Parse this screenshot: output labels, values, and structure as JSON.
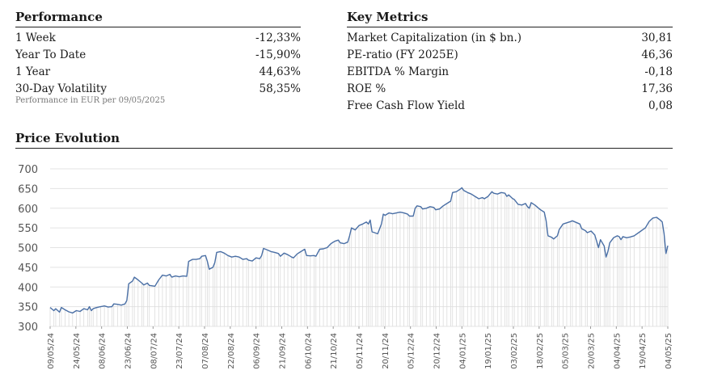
{
  "performance": {
    "title": "Performance",
    "rows": [
      {
        "label": "1 Week",
        "value": "-12,33%"
      },
      {
        "label": "Year To Date",
        "value": "-15,90%"
      },
      {
        "label": "1 Year",
        "value": "44,63%"
      },
      {
        "label": "30-Day Volatility",
        "value": "58,35%"
      }
    ],
    "note": "Performance in EUR per 09/05/2025"
  },
  "key_metrics": {
    "title": "Key Metrics",
    "rows": [
      {
        "label": "Market Capitalization (in $ bn.)",
        "value": "30,81"
      },
      {
        "label": "PE-ratio (FY 2025E)",
        "value": "46,36"
      },
      {
        "label": "EBITDA % Margin",
        "value": "-0,18"
      },
      {
        "label": "ROE %",
        "value": "17,36"
      },
      {
        "label": "Free Cash Flow Yield",
        "value": "0,08"
      }
    ]
  },
  "chart_data": {
    "type": "area",
    "title": "Price Evolution",
    "ylim": [
      300,
      700
    ],
    "yticks": [
      300,
      350,
      400,
      450,
      500,
      550,
      600,
      650,
      700
    ],
    "xticks": [
      "09/05/24",
      "24/05/24",
      "08/06/24",
      "23/06/24",
      "08/07/24",
      "23/07/24",
      "07/08/24",
      "22/08/24",
      "06/09/24",
      "21/09/24",
      "06/10/24",
      "21/10/24",
      "05/11/24",
      "20/11/24",
      "05/12/24",
      "20/12/24",
      "04/01/25",
      "19/01/25",
      "03/02/25",
      "18/02/25",
      "05/03/25",
      "20/03/25",
      "04/04/25",
      "19/04/25",
      "04/05/25"
    ],
    "grid": "horizontal",
    "series": [
      {
        "color": "#4a6fa5",
        "points": [
          [
            0,
            348
          ],
          [
            2,
            340
          ],
          [
            3,
            345
          ],
          [
            5,
            336
          ],
          [
            6,
            348
          ],
          [
            8,
            342
          ],
          [
            10,
            337
          ],
          [
            12,
            334
          ],
          [
            14,
            340
          ],
          [
            16,
            338
          ],
          [
            18,
            345
          ],
          [
            20,
            342
          ],
          [
            21,
            350
          ],
          [
            22,
            340
          ],
          [
            23,
            345
          ],
          [
            25,
            348
          ],
          [
            27,
            350
          ],
          [
            29,
            352
          ],
          [
            31,
            349
          ],
          [
            33,
            350
          ],
          [
            34,
            357
          ],
          [
            36,
            356
          ],
          [
            38,
            354
          ],
          [
            40,
            357
          ],
          [
            41,
            366
          ],
          [
            42,
            408
          ],
          [
            44,
            415
          ],
          [
            45,
            425
          ],
          [
            47,
            418
          ],
          [
            49,
            410
          ],
          [
            50,
            405
          ],
          [
            52,
            410
          ],
          [
            53,
            404
          ],
          [
            56,
            402
          ],
          [
            58,
            418
          ],
          [
            60,
            430
          ],
          [
            62,
            428
          ],
          [
            64,
            432
          ],
          [
            65,
            425
          ],
          [
            67,
            428
          ],
          [
            69,
            426
          ],
          [
            71,
            428
          ],
          [
            73,
            427
          ],
          [
            74,
            465
          ],
          [
            76,
            470
          ],
          [
            78,
            470
          ],
          [
            80,
            472
          ],
          [
            81,
            478
          ],
          [
            83,
            480
          ],
          [
            84,
            465
          ],
          [
            85,
            445
          ],
          [
            87,
            450
          ],
          [
            88,
            462
          ],
          [
            89,
            488
          ],
          [
            91,
            490
          ],
          [
            93,
            486
          ],
          [
            95,
            480
          ],
          [
            97,
            476
          ],
          [
            99,
            478
          ],
          [
            101,
            476
          ],
          [
            103,
            470
          ],
          [
            105,
            472
          ],
          [
            106,
            468
          ],
          [
            108,
            466
          ],
          [
            110,
            474
          ],
          [
            112,
            472
          ],
          [
            113,
            480
          ],
          [
            114,
            498
          ],
          [
            116,
            494
          ],
          [
            118,
            490
          ],
          [
            120,
            488
          ],
          [
            122,
            485
          ],
          [
            123,
            478
          ],
          [
            125,
            486
          ],
          [
            127,
            482
          ],
          [
            129,
            476
          ],
          [
            130,
            474
          ],
          [
            132,
            484
          ],
          [
            134,
            490
          ],
          [
            136,
            496
          ],
          [
            137,
            480
          ],
          [
            139,
            479
          ],
          [
            141,
            480
          ],
          [
            142,
            478
          ],
          [
            144,
            496
          ],
          [
            146,
            497
          ],
          [
            148,
            500
          ],
          [
            150,
            510
          ],
          [
            152,
            516
          ],
          [
            154,
            519
          ],
          [
            155,
            512
          ],
          [
            157,
            510
          ],
          [
            159,
            514
          ],
          [
            160,
            530
          ],
          [
            161,
            550
          ],
          [
            163,
            545
          ],
          [
            165,
            556
          ],
          [
            167,
            560
          ],
          [
            169,
            565
          ],
          [
            170,
            560
          ],
          [
            171,
            570
          ],
          [
            172,
            540
          ],
          [
            174,
            537
          ],
          [
            175,
            535
          ],
          [
            177,
            560
          ],
          [
            178,
            585
          ],
          [
            179,
            582
          ],
          [
            181,
            588
          ],
          [
            183,
            586
          ],
          [
            185,
            588
          ],
          [
            187,
            590
          ],
          [
            189,
            588
          ],
          [
            191,
            585
          ],
          [
            192,
            580
          ],
          [
            194,
            580
          ],
          [
            195,
            600
          ],
          [
            196,
            606
          ],
          [
            198,
            604
          ],
          [
            199,
            598
          ],
          [
            201,
            600
          ],
          [
            203,
            604
          ],
          [
            205,
            602
          ],
          [
            206,
            596
          ],
          [
            208,
            598
          ],
          [
            210,
            606
          ],
          [
            212,
            612
          ],
          [
            214,
            618
          ],
          [
            215,
            640
          ],
          [
            217,
            642
          ],
          [
            219,
            648
          ],
          [
            220,
            652
          ],
          [
            221,
            645
          ],
          [
            223,
            640
          ],
          [
            225,
            636
          ],
          [
            227,
            630
          ],
          [
            229,
            624
          ],
          [
            231,
            627
          ],
          [
            232,
            624
          ],
          [
            234,
            630
          ],
          [
            236,
            642
          ],
          [
            237,
            638
          ],
          [
            239,
            636
          ],
          [
            241,
            640
          ],
          [
            243,
            638
          ],
          [
            244,
            630
          ],
          [
            245,
            634
          ],
          [
            247,
            625
          ],
          [
            248,
            622
          ],
          [
            250,
            610
          ],
          [
            252,
            608
          ],
          [
            254,
            612
          ],
          [
            255,
            604
          ],
          [
            256,
            600
          ],
          [
            257,
            614
          ],
          [
            259,
            608
          ],
          [
            261,
            600
          ],
          [
            262,
            596
          ],
          [
            264,
            590
          ],
          [
            265,
            568
          ],
          [
            266,
            530
          ],
          [
            268,
            526
          ],
          [
            269,
            522
          ],
          [
            271,
            530
          ],
          [
            272,
            546
          ],
          [
            274,
            560
          ],
          [
            276,
            563
          ],
          [
            278,
            566
          ],
          [
            279,
            568
          ],
          [
            281,
            564
          ],
          [
            283,
            560
          ],
          [
            284,
            548
          ],
          [
            286,
            543
          ],
          [
            287,
            538
          ],
          [
            289,
            542
          ],
          [
            291,
            532
          ],
          [
            292,
            516
          ],
          [
            293,
            500
          ],
          [
            294,
            520
          ],
          [
            296,
            504
          ],
          [
            297,
            476
          ],
          [
            298,
            490
          ],
          [
            299,
            512
          ],
          [
            301,
            525
          ],
          [
            303,
            530
          ],
          [
            304,
            528
          ],
          [
            305,
            520
          ],
          [
            306,
            528
          ],
          [
            308,
            525
          ],
          [
            310,
            527
          ],
          [
            312,
            530
          ],
          [
            315,
            540
          ],
          [
            318,
            550
          ],
          [
            320,
            566
          ],
          [
            322,
            575
          ],
          [
            324,
            577
          ],
          [
            326,
            570
          ],
          [
            327,
            565
          ],
          [
            328,
            535
          ],
          [
            329,
            485
          ],
          [
            330,
            505
          ]
        ]
      }
    ]
  }
}
